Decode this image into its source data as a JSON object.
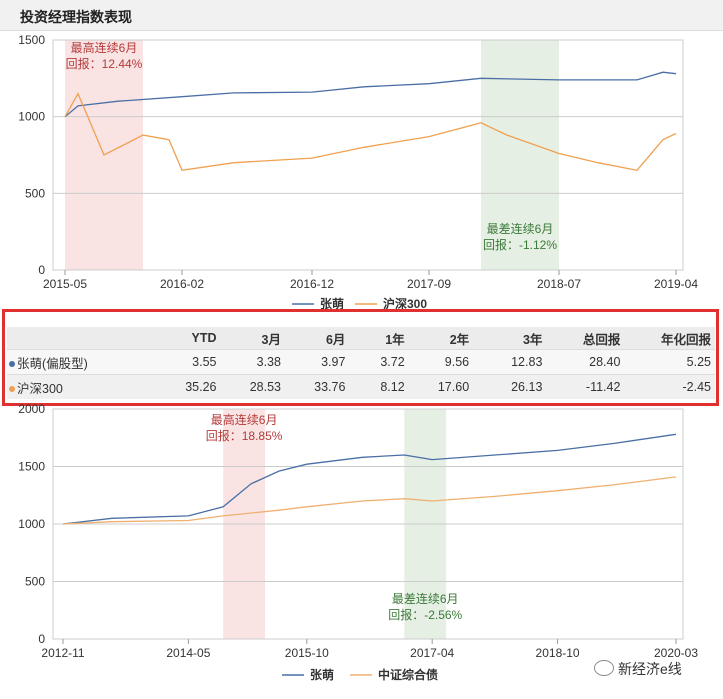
{
  "page": {
    "title": "投资经理指数表现"
  },
  "chart_data": [
    {
      "type": "line",
      "ylim": [
        0,
        1500
      ],
      "yticks": [
        0,
        500,
        1000,
        1500
      ],
      "xticks": [
        "2015-05",
        "2016-02",
        "2016-12",
        "2017-09",
        "2018-07",
        "2019-04"
      ],
      "xrange": [
        "2015-05",
        "2019-04"
      ],
      "legend": [
        "张萌",
        "沪深300"
      ],
      "legend_position": "bottom",
      "grid": true,
      "series": [
        {
          "name": "张萌",
          "color": "#4a6fa5",
          "x": [
            "2015-05",
            "2015-06",
            "2015-09",
            "2016-02",
            "2016-06",
            "2016-12",
            "2017-04",
            "2017-09",
            "2018-01",
            "2018-07",
            "2019-01",
            "2019-03",
            "2019-04"
          ],
          "values": [
            1000,
            1070,
            1100,
            1130,
            1155,
            1160,
            1195,
            1215,
            1250,
            1240,
            1240,
            1290,
            1280
          ]
        },
        {
          "name": "沪深300",
          "color": "#f0a050",
          "x": [
            "2015-05",
            "2015-06",
            "2015-07",
            "2015-08",
            "2015-11",
            "2016-01",
            "2016-02",
            "2016-06",
            "2016-12",
            "2017-04",
            "2017-09",
            "2018-01",
            "2018-03",
            "2018-07",
            "2018-10",
            "2019-01",
            "2019-03",
            "2019-04"
          ],
          "values": [
            1000,
            1150,
            950,
            750,
            880,
            850,
            650,
            700,
            730,
            800,
            870,
            960,
            880,
            760,
            700,
            650,
            850,
            890
          ]
        }
      ],
      "highlights": [
        {
          "type": "best",
          "from": "2015-05",
          "to": "2015-11",
          "color": "#f9e3e3",
          "label_line1": "最高连续6月",
          "label_line2": "回报：12.44%",
          "label_color": "#b53a3a"
        },
        {
          "type": "worst",
          "from": "2018-01",
          "to": "2018-07",
          "color": "#e5efe3",
          "label_line1": "最差连续6月",
          "label_line2": "回报：-1.12%",
          "label_color": "#3c7a3a"
        }
      ]
    },
    {
      "type": "line",
      "ylim": [
        0,
        2000
      ],
      "yticks": [
        0,
        500,
        1000,
        1500,
        2000
      ],
      "xticks": [
        "2012-11",
        "2014-05",
        "2015-10",
        "2017-04",
        "2018-10",
        "2020-03"
      ],
      "xrange": [
        "2012-11",
        "2020-03"
      ],
      "legend": [
        "张萌",
        "中证综合债"
      ],
      "legend_position": "bottom",
      "grid": true,
      "series": [
        {
          "name": "张萌",
          "color": "#4a6fa5",
          "x": [
            "2012-11",
            "2013-06",
            "2014-05",
            "2014-10",
            "2015-02",
            "2015-06",
            "2015-10",
            "2016-06",
            "2016-12",
            "2017-04",
            "2018-01",
            "2018-10",
            "2019-06",
            "2020-03"
          ],
          "values": [
            1000,
            1050,
            1070,
            1150,
            1350,
            1460,
            1520,
            1580,
            1600,
            1560,
            1600,
            1640,
            1700,
            1780
          ]
        },
        {
          "name": "中证综合债",
          "color": "#f0b070",
          "x": [
            "2012-11",
            "2013-06",
            "2014-05",
            "2014-10",
            "2015-06",
            "2015-10",
            "2016-06",
            "2016-12",
            "2017-04",
            "2018-01",
            "2018-10",
            "2019-06",
            "2020-03"
          ],
          "values": [
            1000,
            1020,
            1030,
            1070,
            1120,
            1150,
            1200,
            1220,
            1200,
            1240,
            1290,
            1340,
            1410
          ]
        }
      ],
      "highlights": [
        {
          "type": "best",
          "from": "2014-10",
          "to": "2015-04",
          "color": "#f9e3e3",
          "label_line1": "最高连续6月",
          "label_line2": "回报：18.85%",
          "label_color": "#b53a3a"
        },
        {
          "type": "worst",
          "from": "2016-12",
          "to": "2017-06",
          "color": "#e5efe3",
          "label_line1": "最差连续6月",
          "label_line2": "回报：-2.56%",
          "label_color": "#3c7a3a"
        }
      ]
    },
    {
      "type": "table",
      "columns": [
        "YTD",
        "3月",
        "6月",
        "1年",
        "2年",
        "3年",
        "总回报",
        "年化回报"
      ],
      "rows": [
        {
          "name": "张萌(偏股型)",
          "color": "#4a6fa5",
          "values": [
            "3.55",
            "3.38",
            "3.97",
            "3.72",
            "9.56",
            "12.83",
            "28.40",
            "5.25"
          ]
        },
        {
          "name": "沪深300",
          "color": "#f0a050",
          "values": [
            "35.26",
            "28.53",
            "33.76",
            "8.12",
            "17.60",
            "26.13",
            "-11.42",
            "-2.45"
          ]
        }
      ]
    }
  ],
  "watermark": "新经济e线"
}
